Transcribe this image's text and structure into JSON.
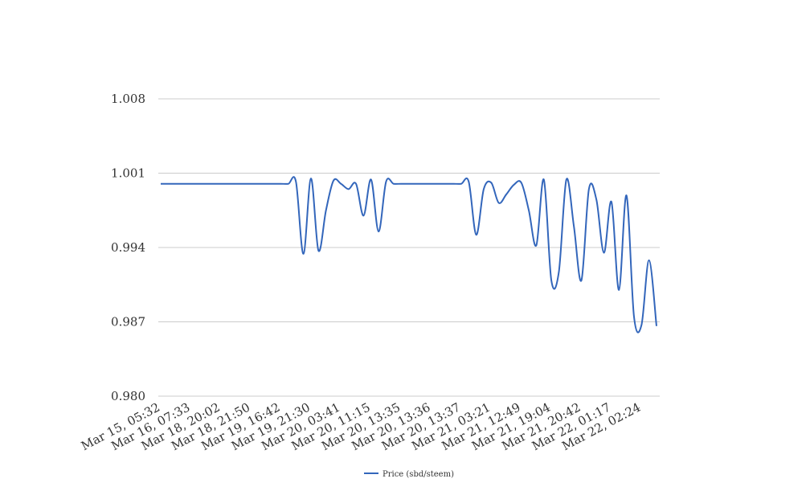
{
  "chart_data": {
    "type": "line",
    "categories": [
      "Mar 15, 05:32",
      null,
      null,
      null,
      "Mar 16, 07:33",
      null,
      null,
      null,
      "Mar 18, 20:02",
      null,
      null,
      null,
      "Mar 18, 21:50",
      null,
      null,
      null,
      "Mar 19, 16:42",
      null,
      null,
      null,
      "Mar 19, 21:30",
      null,
      null,
      null,
      "Mar 20, 03:41",
      null,
      null,
      null,
      "Mar 20, 11:15",
      null,
      null,
      null,
      "Mar 20, 13:35",
      null,
      null,
      null,
      "Mar 20, 13:36",
      null,
      null,
      null,
      "Mar 20, 13:37",
      null,
      null,
      null,
      "Mar 21, 03:21",
      null,
      null,
      null,
      "Mar 21, 12:49",
      null,
      null,
      null,
      "Mar 21, 19:04",
      null,
      null,
      null,
      "Mar 21, 20:42",
      null,
      null,
      null,
      "Mar 22, 01:17",
      null,
      null,
      null,
      "Mar 22, 02:24",
      null,
      null
    ],
    "series": [
      {
        "name": "Price (sbd/steem)",
        "color": "#3366bb",
        "values": [
          1.0,
          1.0,
          1.0,
          1.0,
          1.0,
          1.0,
          1.0,
          1.0,
          1.0,
          1.0,
          1.0,
          1.0,
          1.0,
          1.0,
          1.0,
          1.0,
          1.0,
          1.0,
          1.0002,
          0.9934,
          1.0005,
          0.9937,
          0.9975,
          1.0003,
          1.0,
          0.9995,
          1.0,
          0.997,
          1.0004,
          0.9955,
          1.0002,
          1.0,
          1.0,
          1.0,
          1.0,
          1.0,
          1.0,
          1.0,
          1.0,
          1.0,
          1.0,
          1.0002,
          0.9952,
          0.9995,
          1.0001,
          0.9982,
          0.999,
          0.9999,
          1.0001,
          0.9975,
          0.9942,
          1.0004,
          0.9909,
          0.9917,
          1.0004,
          0.996,
          0.9909,
          0.9995,
          0.9985,
          0.9935,
          0.9983,
          0.99,
          0.9989,
          0.9875,
          0.9867,
          0.9928,
          0.9866
        ]
      }
    ],
    "ylim": [
      0.98,
      1.008
    ],
    "yticks": [
      {
        "value": 0.98,
        "label": "0.980"
      },
      0.987,
      0.994,
      1.001,
      1.008
    ],
    "grid": true,
    "legend": "bottom"
  }
}
